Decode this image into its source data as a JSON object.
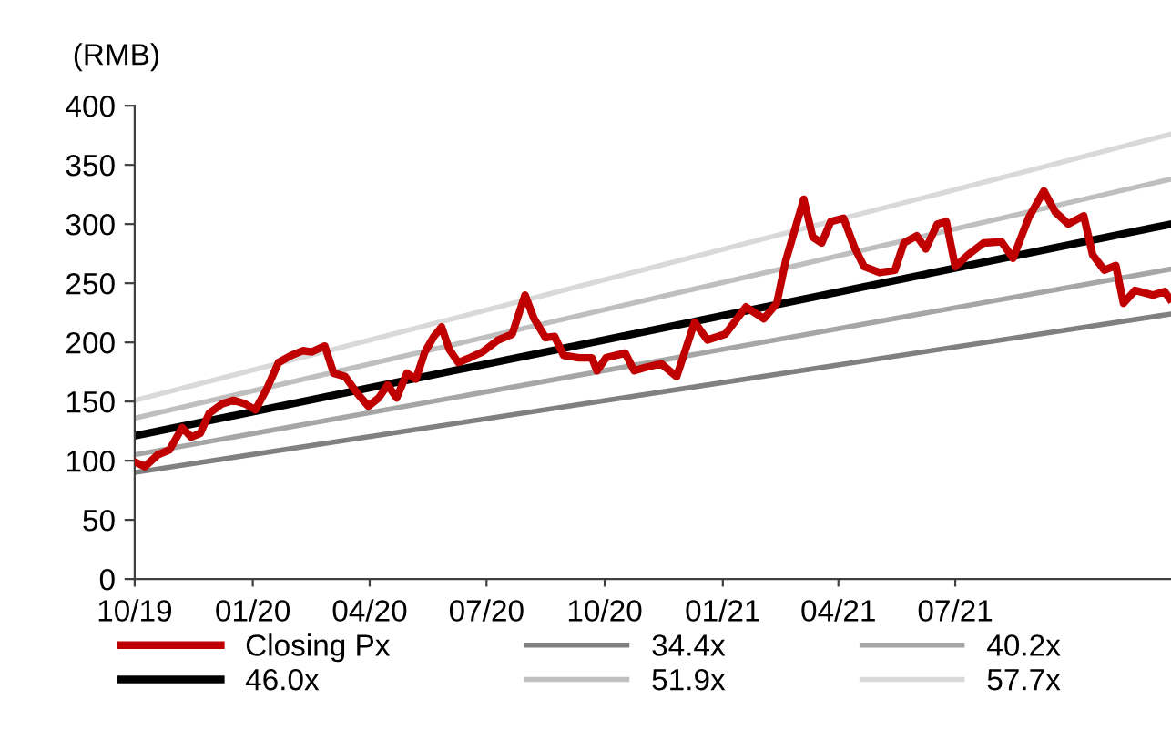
{
  "chart_data": {
    "type": "line",
    "ylabel": "(RMB)",
    "xlim": [
      "2019-10-01",
      "2021-12-16"
    ],
    "xticks": [
      {
        "value": "2019-10-01",
        "label": "10/19"
      },
      {
        "value": "2020-01-01",
        "label": "01/20"
      },
      {
        "value": "2020-04-01",
        "label": "04/20"
      },
      {
        "value": "2020-07-01",
        "label": "07/20"
      },
      {
        "value": "2020-10-01",
        "label": "10/20"
      },
      {
        "value": "2021-01-01",
        "label": "01/21"
      },
      {
        "value": "2021-04-01",
        "label": "04/21"
      },
      {
        "value": "2021-07-01",
        "label": "07/21"
      }
    ],
    "ylim": [
      0,
      400
    ],
    "yticks": [
      0,
      50,
      100,
      150,
      200,
      250,
      300,
      350,
      400
    ],
    "grid": false,
    "legend": "bottom",
    "marker": "none",
    "line_style": "solid",
    "series": [
      {
        "name": "Closing Px",
        "color": "#c00000",
        "x": [
          "2019-10-01",
          "2019-10-09",
          "2019-10-19",
          "2019-10-28",
          "2019-11-07",
          "2019-11-14",
          "2019-11-21",
          "2019-11-28",
          "2019-12-08",
          "2019-12-17",
          "2019-12-26",
          "2020-01-03",
          "2020-01-12",
          "2020-01-21",
          "2020-01-31",
          "2020-02-09",
          "2020-02-16",
          "2020-02-26",
          "2020-03-04",
          "2020-03-13",
          "2020-03-23",
          "2020-03-31",
          "2020-04-08",
          "2020-04-15",
          "2020-04-22",
          "2020-04-30",
          "2020-05-07",
          "2020-05-14",
          "2020-05-21",
          "2020-05-27",
          "2020-06-02",
          "2020-06-09",
          "2020-06-18",
          "2020-06-28",
          "2020-07-10",
          "2020-07-21",
          "2020-07-31",
          "2020-08-07",
          "2020-08-16",
          "2020-08-23",
          "2020-08-30",
          "2020-09-11",
          "2020-09-21",
          "2020-09-25",
          "2020-10-02",
          "2020-10-17",
          "2020-10-24",
          "2020-11-02",
          "2020-11-14",
          "2020-11-26",
          "2020-12-10",
          "2020-12-20",
          "2021-01-03",
          "2021-01-19",
          "2021-02-02",
          "2021-02-12",
          "2021-02-19",
          "2021-03-05",
          "2021-03-12",
          "2021-03-19",
          "2021-03-26",
          "2021-04-05",
          "2021-04-14",
          "2021-04-21",
          "2021-05-03",
          "2021-05-15",
          "2021-05-22",
          "2021-06-01",
          "2021-06-08",
          "2021-06-17",
          "2021-06-24",
          "2021-07-01",
          "2021-07-11",
          "2021-07-23",
          "2021-08-06",
          "2021-08-15",
          "2021-08-27",
          "2021-09-08",
          "2021-09-17",
          "2021-09-27",
          "2021-10-09",
          "2021-10-16",
          "2021-10-25",
          "2021-11-03",
          "2021-11-09",
          "2021-11-18",
          "2021-12-02",
          "2021-12-11",
          "2021-12-15"
        ],
        "values": [
          99,
          95,
          105,
          109,
          128,
          120,
          123,
          140,
          148,
          151,
          148,
          143,
          161,
          183,
          189,
          193,
          192,
          197,
          174,
          171,
          156,
          146,
          153,
          164,
          153,
          174,
          169,
          192,
          205,
          213,
          194,
          183,
          187,
          192,
          202,
          207,
          240,
          220,
          204,
          205,
          189,
          187,
          187,
          176,
          187,
          191,
          176,
          179,
          182,
          171,
          217,
          202,
          207,
          230,
          220,
          233,
          269,
          321,
          289,
          284,
          302,
          305,
          279,
          264,
          259,
          261,
          284,
          290,
          279,
          300,
          302,
          264,
          274,
          284,
          285,
          271,
          305,
          328,
          310,
          300,
          307,
          274,
          261,
          265,
          233,
          244,
          240,
          243,
          237
        ]
      },
      {
        "name": "34.4x",
        "color": "#808080",
        "x": [
          "2019-10-01",
          "2021-12-16"
        ],
        "values": [
          90,
          224
        ]
      },
      {
        "name": "40.2x",
        "color": "#a6a6a6",
        "x": [
          "2019-10-01",
          "2021-12-16"
        ],
        "values": [
          105,
          262
        ]
      },
      {
        "name": "46.0x",
        "color": "#000000",
        "x": [
          "2019-10-01",
          "2021-12-16"
        ],
        "values": [
          121,
          300
        ]
      },
      {
        "name": "51.9x",
        "color": "#bfbfbf",
        "x": [
          "2019-10-01",
          "2021-12-16"
        ],
        "values": [
          136,
          338
        ]
      },
      {
        "name": "57.7x",
        "color": "#d9d9d9",
        "x": [
          "2019-10-01",
          "2021-12-16"
        ],
        "values": [
          151,
          376
        ]
      }
    ]
  }
}
